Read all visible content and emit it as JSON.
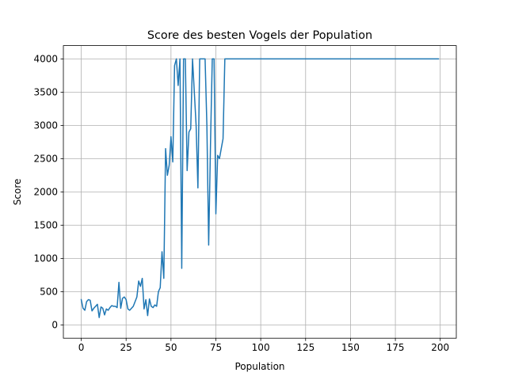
{
  "chart_data": {
    "type": "line",
    "title": "Score des besten Vogels der Population",
    "xlabel": "Population",
    "ylabel": "Score",
    "xlim": [
      -9.95,
      208.95
    ],
    "ylim": [
      -200,
      4200
    ],
    "xticks": [
      0,
      25,
      50,
      75,
      100,
      125,
      150,
      175,
      200
    ],
    "yticks": [
      0,
      500,
      1000,
      1500,
      2000,
      2500,
      3000,
      3500,
      4000
    ],
    "xtick_labels": [
      "0",
      "25",
      "50",
      "75",
      "100",
      "125",
      "150",
      "175",
      "200"
    ],
    "ytick_labels": [
      "0",
      "500",
      "1000",
      "1500",
      "2000",
      "2500",
      "3000",
      "3500",
      "4000"
    ],
    "grid": true,
    "series": [
      {
        "color": "#1f77b4",
        "x": [
          0,
          1,
          2,
          3,
          4,
          5,
          6,
          7,
          8,
          9,
          10,
          11,
          12,
          13,
          14,
          15,
          16,
          17,
          18,
          19,
          20,
          21,
          22,
          23,
          24,
          25,
          26,
          27,
          28,
          29,
          30,
          31,
          32,
          33,
          34,
          35,
          36,
          37,
          38,
          39,
          40,
          41,
          42,
          43,
          44,
          45,
          46,
          47,
          48,
          49,
          50,
          51,
          52,
          53,
          54,
          55,
          56,
          57,
          58,
          59,
          60,
          61,
          62,
          63,
          64,
          65,
          66,
          67,
          68,
          69,
          70,
          71,
          72,
          73,
          74,
          75,
          76,
          77,
          78,
          79,
          80,
          199
        ],
        "y": [
          380,
          250,
          220,
          350,
          380,
          370,
          210,
          250,
          280,
          310,
          110,
          270,
          250,
          150,
          240,
          220,
          260,
          290,
          280,
          280,
          260,
          640,
          250,
          400,
          420,
          380,
          240,
          220,
          250,
          280,
          350,
          420,
          660,
          580,
          700,
          240,
          380,
          140,
          390,
          280,
          260,
          300,
          280,
          500,
          560,
          1100,
          700,
          2650,
          2250,
          2400,
          2830,
          2450,
          3900,
          4000,
          3600,
          4000,
          850,
          4000,
          4000,
          2320,
          2900,
          2950,
          4000,
          3500,
          3000,
          2060,
          4000,
          4000,
          4000,
          4000,
          3000,
          1200,
          2700,
          4000,
          4000,
          1670,
          2550,
          2500,
          2650,
          2800,
          4000,
          4000
        ]
      }
    ]
  }
}
